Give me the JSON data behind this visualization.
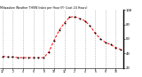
{
  "title": "Milwaukee Weather THSW Index per Hour (F) (Last 24 Hours)",
  "x_hours": [
    0,
    1,
    2,
    3,
    4,
    5,
    6,
    7,
    8,
    9,
    10,
    11,
    12,
    13,
    14,
    15,
    16,
    17,
    18,
    19,
    20,
    21,
    22,
    23
  ],
  "y_values": [
    36,
    35,
    35,
    34,
    34,
    34,
    34,
    34,
    34,
    42,
    58,
    72,
    82,
    90,
    91,
    88,
    85,
    78,
    68,
    60,
    55,
    52,
    48,
    45
  ],
  "y_min": 20,
  "y_max": 100,
  "line_color": "#ff0000",
  "marker_color": "#000000",
  "bg_color": "#ffffff",
  "plot_bg": "#ffffff",
  "grid_color": "#999999",
  "y_ticks": [
    20,
    40,
    60,
    80,
    100
  ],
  "y_tick_labels": [
    "20",
    "40",
    "60",
    "80",
    "100"
  ],
  "x_tick_positions": [
    0,
    2,
    4,
    6,
    8,
    10,
    12,
    14,
    16,
    18,
    20,
    22
  ],
  "x_tick_labels": [
    "12",
    "2",
    "4",
    "6",
    "8",
    "10",
    "12",
    "2",
    "4",
    "6",
    "8",
    "10"
  ],
  "vgrid_positions": [
    0,
    2,
    4,
    6,
    8,
    10,
    12,
    14,
    16,
    18,
    20,
    22
  ]
}
